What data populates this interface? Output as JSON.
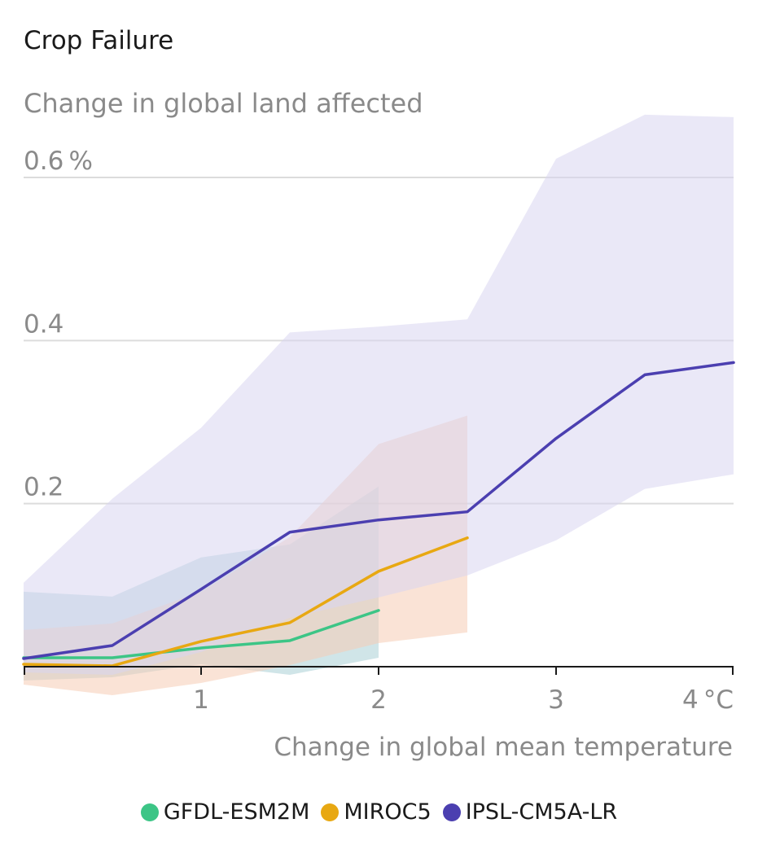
{
  "chart_data": {
    "type": "line",
    "title": "Crop Failure",
    "subtitle": "Change in global land affected",
    "xlabel": "Change in global mean temperature",
    "ylabel": "",
    "xlim": [
      0,
      4
    ],
    "ylim": [
      0,
      0.6
    ],
    "xticks": [
      {
        "value": 1,
        "label": "1"
      },
      {
        "value": 2,
        "label": "2"
      },
      {
        "value": 3,
        "label": "3"
      },
      {
        "value": 4,
        "label": "4 °C"
      }
    ],
    "yticks": [
      {
        "value": 0.2,
        "label": "0.2"
      },
      {
        "value": 0.4,
        "label": "0.4"
      },
      {
        "value": 0.6,
        "label": "0.6 %"
      }
    ],
    "grid": true,
    "legend_position": "bottom",
    "series": [
      {
        "name": "GFDL-ESM2M",
        "color": "#3cc586",
        "band_color": "#a9d0d6",
        "x": [
          0,
          0.5,
          1,
          1.5,
          2
        ],
        "values": [
          0.011,
          0.011,
          0.023,
          0.032,
          0.069
        ],
        "upper": [
          0.092,
          0.086,
          0.134,
          0.15,
          0.221
        ],
        "lower": [
          -0.017,
          -0.013,
          0.003,
          -0.01,
          0.011
        ]
      },
      {
        "name": "MIROC5",
        "color": "#e8a812",
        "band_color": "#f5ccb4",
        "x": [
          0,
          0.5,
          1,
          1.5,
          2,
          2.5
        ],
        "values": [
          0.003,
          0.001,
          0.031,
          0.054,
          0.117,
          0.158
        ],
        "upper": [
          0.045,
          0.053,
          0.092,
          0.159,
          0.273,
          0.308
        ],
        "lower": [
          -0.022,
          -0.035,
          -0.02,
          0.002,
          0.029,
          0.042
        ]
      },
      {
        "name": "IPSL-CM5A-LR",
        "color": "#4b3fb0",
        "band_color": "#d9d5f0",
        "x": [
          0,
          0.5,
          1,
          1.5,
          2,
          2.5,
          3,
          3.5,
          4
        ],
        "values": [
          0.01,
          0.026,
          0.095,
          0.165,
          0.18,
          0.19,
          0.28,
          0.358,
          0.373
        ],
        "upper": [
          0.103,
          0.206,
          0.293,
          0.41,
          0.417,
          0.426,
          0.623,
          0.677,
          0.674
        ],
        "lower": [
          -0.007,
          -0.01,
          0.018,
          0.06,
          0.085,
          0.112,
          0.155,
          0.218,
          0.236
        ]
      }
    ]
  }
}
